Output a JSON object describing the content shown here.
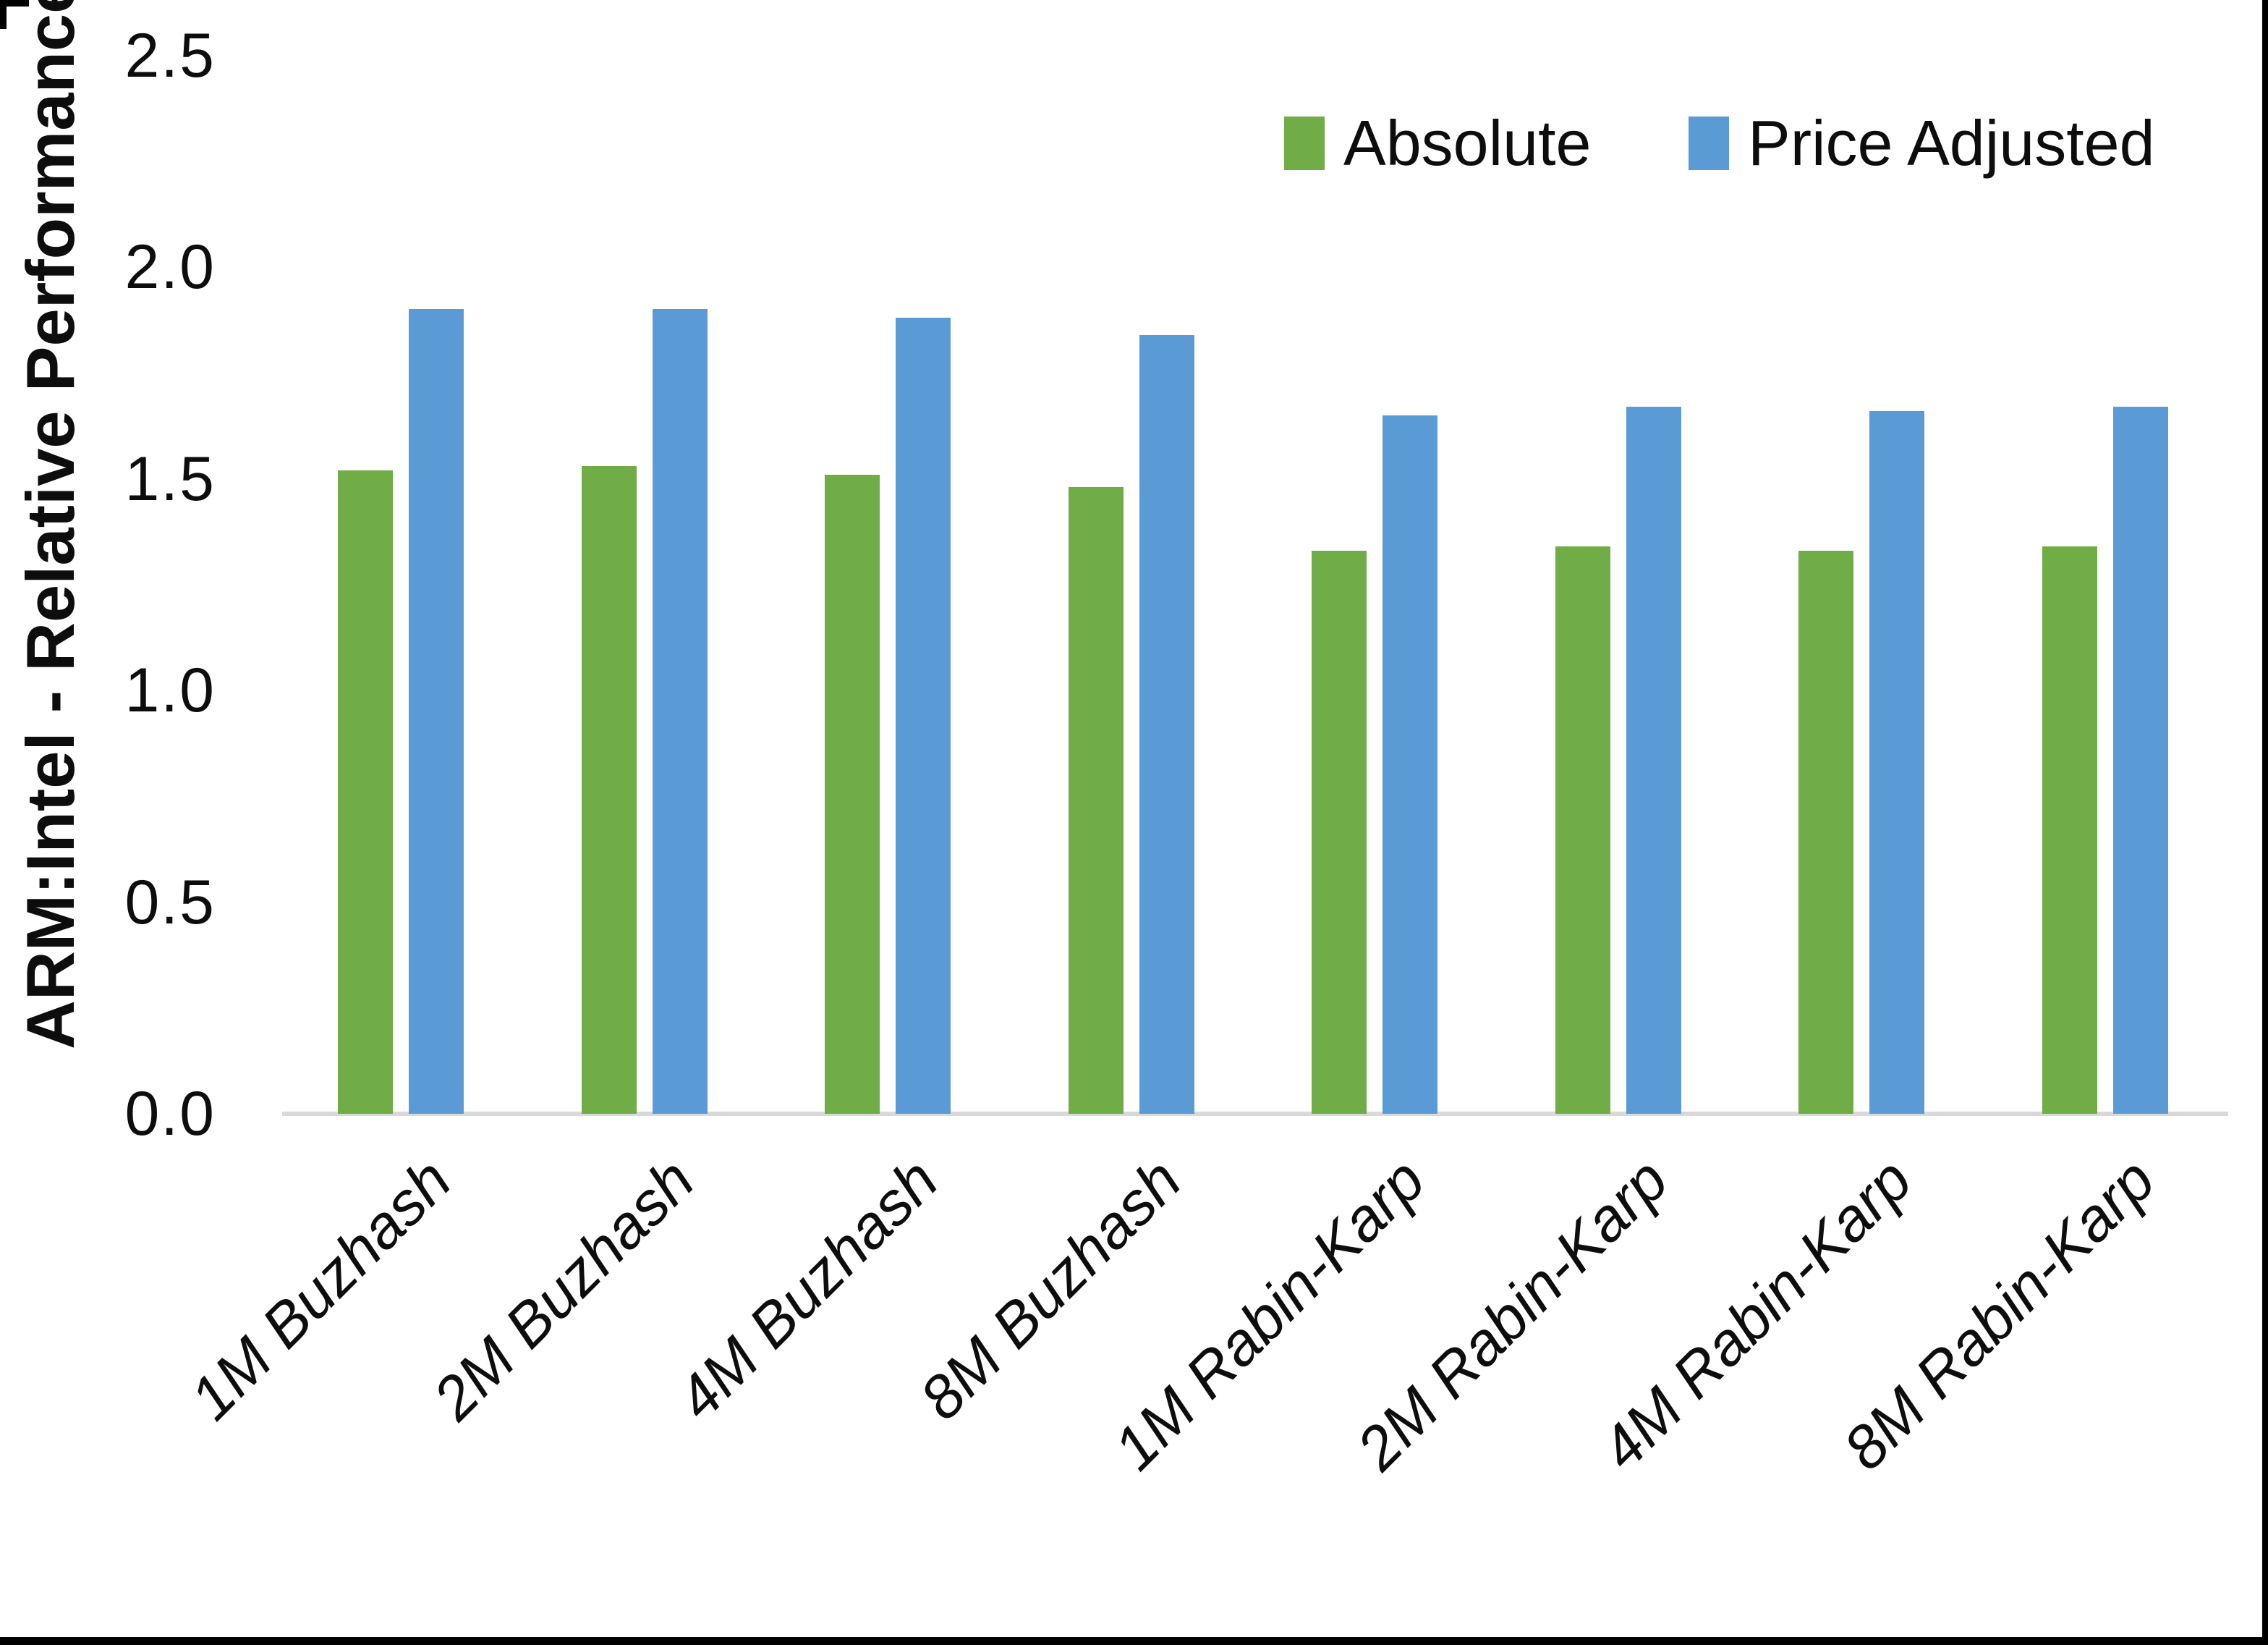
{
  "chart_data": {
    "type": "bar",
    "title": "",
    "ylabel": "ARM:Intel - Relative Performance",
    "xlabel": "",
    "ylim": [
      0,
      2.5
    ],
    "yticks": [
      "0.0",
      "0.5",
      "1.0",
      "1.5",
      "2.0",
      "2.5"
    ],
    "grid": false,
    "legend_position": "top-right",
    "categories": [
      "1M Buzhash",
      "2M Buzhash",
      "4M Buzhash",
      "8M Buzhash",
      "1M Rabin-Karp",
      "2M Rabin-Karp",
      "4M Rabin-Karp",
      "8M Rabin-Karp"
    ],
    "series": [
      {
        "name": "Absolute",
        "color": "#70AD47",
        "values": [
          1.52,
          1.53,
          1.51,
          1.48,
          1.33,
          1.34,
          1.33,
          1.34
        ]
      },
      {
        "name": "Price Adjusted",
        "color": "#5B9BD5",
        "values": [
          1.9,
          1.9,
          1.88,
          1.84,
          1.65,
          1.67,
          1.66,
          1.67
        ]
      }
    ]
  }
}
